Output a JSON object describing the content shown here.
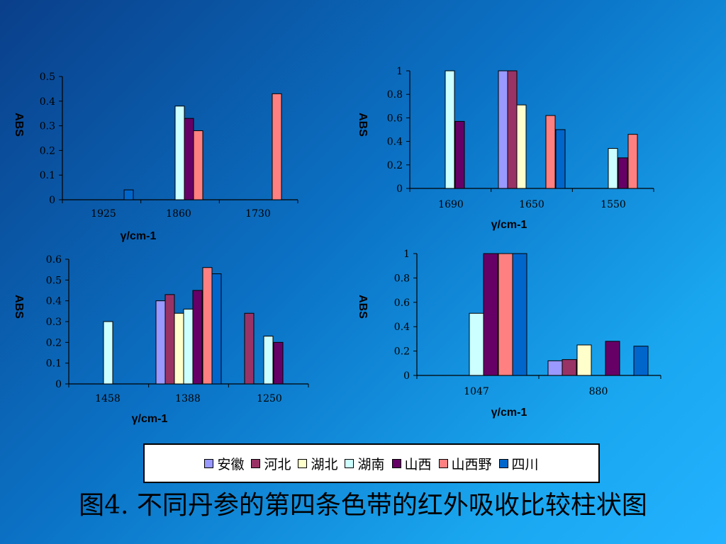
{
  "colors": {
    "安徽": "#9999ff",
    "河北": "#993366",
    "湖北": "#ffffcc",
    "湖南": "#ccffff",
    "山西": "#660066",
    "山西野": "#ff8080",
    "四川": "#0066cc"
  },
  "legend": [
    "安徽",
    "河北",
    "湖北",
    "湖南",
    "山西",
    "山西野",
    "四川"
  ],
  "caption": "图4. 不同丹参的第四条色带的红外吸收比较柱状图",
  "chart_data": [
    {
      "type": "bar",
      "ylabel": "ABS",
      "xlabel": "γ/cm-1",
      "categories": [
        "1925",
        "1860",
        "1730"
      ],
      "yticks": [
        "0",
        "0.1",
        "0.2",
        "0.3",
        "0.4",
        "0.5"
      ],
      "ylim": [
        0,
        0.5
      ],
      "bars": [
        {
          "cat": 0,
          "series": "四川",
          "value": 0.04
        },
        {
          "cat": 1,
          "series": "湖南",
          "value": 0.38
        },
        {
          "cat": 1,
          "series": "山西",
          "value": 0.33
        },
        {
          "cat": 1,
          "series": "山西野",
          "value": 0.28
        },
        {
          "cat": 2,
          "series": "山西野",
          "value": 0.43
        }
      ]
    },
    {
      "type": "bar",
      "ylabel": "ABS",
      "xlabel": "γ/cm-1",
      "categories": [
        "1690",
        "1650",
        "1550"
      ],
      "yticks": [
        "0",
        "0.2",
        "0.4",
        "0.6",
        "0.8",
        "1"
      ],
      "ylim": [
        0,
        1
      ],
      "bars": [
        {
          "cat": 0,
          "series": "湖南",
          "value": 1.0
        },
        {
          "cat": 0,
          "series": "山西",
          "value": 0.57
        },
        {
          "cat": 1,
          "series": "安徽",
          "value": 1.0
        },
        {
          "cat": 1,
          "series": "河北",
          "value": 1.0
        },
        {
          "cat": 1,
          "series": "湖北",
          "value": 0.71
        },
        {
          "cat": 1,
          "series": "山西野",
          "value": 0.62
        },
        {
          "cat": 1,
          "series": "四川",
          "value": 0.5
        },
        {
          "cat": 2,
          "series": "湖南",
          "value": 0.34
        },
        {
          "cat": 2,
          "series": "山西",
          "value": 0.26
        },
        {
          "cat": 2,
          "series": "山西野",
          "value": 0.46
        }
      ]
    },
    {
      "type": "bar",
      "ylabel": "ABS",
      "xlabel": "γ/cm-1",
      "categories": [
        "1458",
        "1388",
        "1250"
      ],
      "yticks": [
        "0",
        "0.1",
        "0.2",
        "0.3",
        "0.4",
        "0.5",
        "0.6"
      ],
      "ylim": [
        0,
        0.6
      ],
      "bars": [
        {
          "cat": 0,
          "series": "湖南",
          "value": 0.3
        },
        {
          "cat": 1,
          "series": "安徽",
          "value": 0.4
        },
        {
          "cat": 1,
          "series": "河北",
          "value": 0.43
        },
        {
          "cat": 1,
          "series": "湖北",
          "value": 0.34
        },
        {
          "cat": 1,
          "series": "湖南",
          "value": 0.36
        },
        {
          "cat": 1,
          "series": "山西",
          "value": 0.45
        },
        {
          "cat": 1,
          "series": "山西野",
          "value": 0.56
        },
        {
          "cat": 1,
          "series": "四川",
          "value": 0.53
        },
        {
          "cat": 2,
          "series": "河北",
          "value": 0.34
        },
        {
          "cat": 2,
          "series": "湖南",
          "value": 0.23
        },
        {
          "cat": 2,
          "series": "山西",
          "value": 0.2
        }
      ]
    },
    {
      "type": "bar",
      "ylabel": "ABS",
      "xlabel": "γ/cm-1",
      "categories": [
        "1047",
        "880"
      ],
      "yticks": [
        "0",
        "0.2",
        "0.4",
        "0.6",
        "0.8",
        "1"
      ],
      "ylim": [
        0,
        1
      ],
      "bars": [
        {
          "cat": 0,
          "series": "湖南",
          "value": 0.51
        },
        {
          "cat": 0,
          "series": "山西",
          "value": 1.0
        },
        {
          "cat": 0,
          "series": "山西野",
          "value": 1.0
        },
        {
          "cat": 0,
          "series": "四川",
          "value": 1.0
        },
        {
          "cat": 1,
          "series": "安徽",
          "value": 0.12
        },
        {
          "cat": 1,
          "series": "河北",
          "value": 0.13
        },
        {
          "cat": 1,
          "series": "湖北",
          "value": 0.25
        },
        {
          "cat": 1,
          "series": "山西",
          "value": 0.28
        },
        {
          "cat": 1,
          "series": "四川",
          "value": 0.24
        }
      ]
    }
  ]
}
